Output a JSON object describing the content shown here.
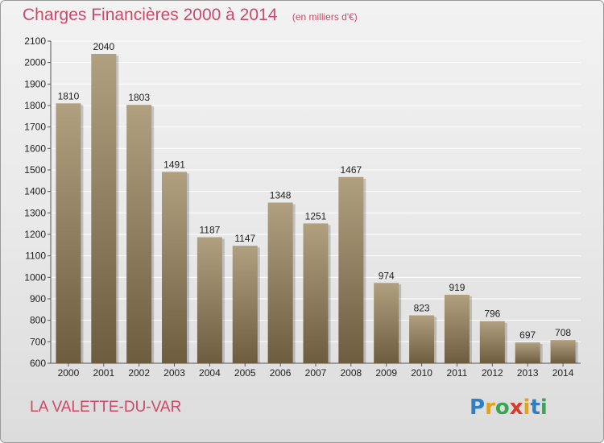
{
  "title": "Charges Financières 2000 à 2014",
  "subtitle": "(en milliers d'€)",
  "commune": "LA VALETTE-DU-VAR",
  "logo": {
    "letters": [
      "P",
      "r",
      "o",
      "x",
      "i",
      "t",
      "i"
    ],
    "colors": [
      "#2e7fc4",
      "#e3a21a",
      "#3aa655",
      "#d93a2b",
      "#e3a21a",
      "#2e7fc4",
      "#3aa655"
    ]
  },
  "colors": {
    "bar_top": "#b0a080",
    "bar_bottom": "#6e5c3e",
    "grid": "#ffffff",
    "text": "#222222",
    "accent": "#c94a6a"
  },
  "chart_data": {
    "type": "bar",
    "categories": [
      "2000",
      "2001",
      "2002",
      "2003",
      "2004",
      "2005",
      "2006",
      "2007",
      "2008",
      "2009",
      "2010",
      "2011",
      "2012",
      "2013",
      "2014"
    ],
    "values": [
      1810,
      2040,
      1803,
      1491,
      1187,
      1147,
      1348,
      1251,
      1467,
      974,
      823,
      919,
      796,
      697,
      708
    ],
    "ylim": [
      600,
      2100
    ],
    "yticks": [
      600,
      700,
      800,
      900,
      1000,
      1100,
      1200,
      1300,
      1400,
      1500,
      1600,
      1700,
      1800,
      1900,
      2000,
      2100
    ],
    "grid": true,
    "data_labels": true
  }
}
